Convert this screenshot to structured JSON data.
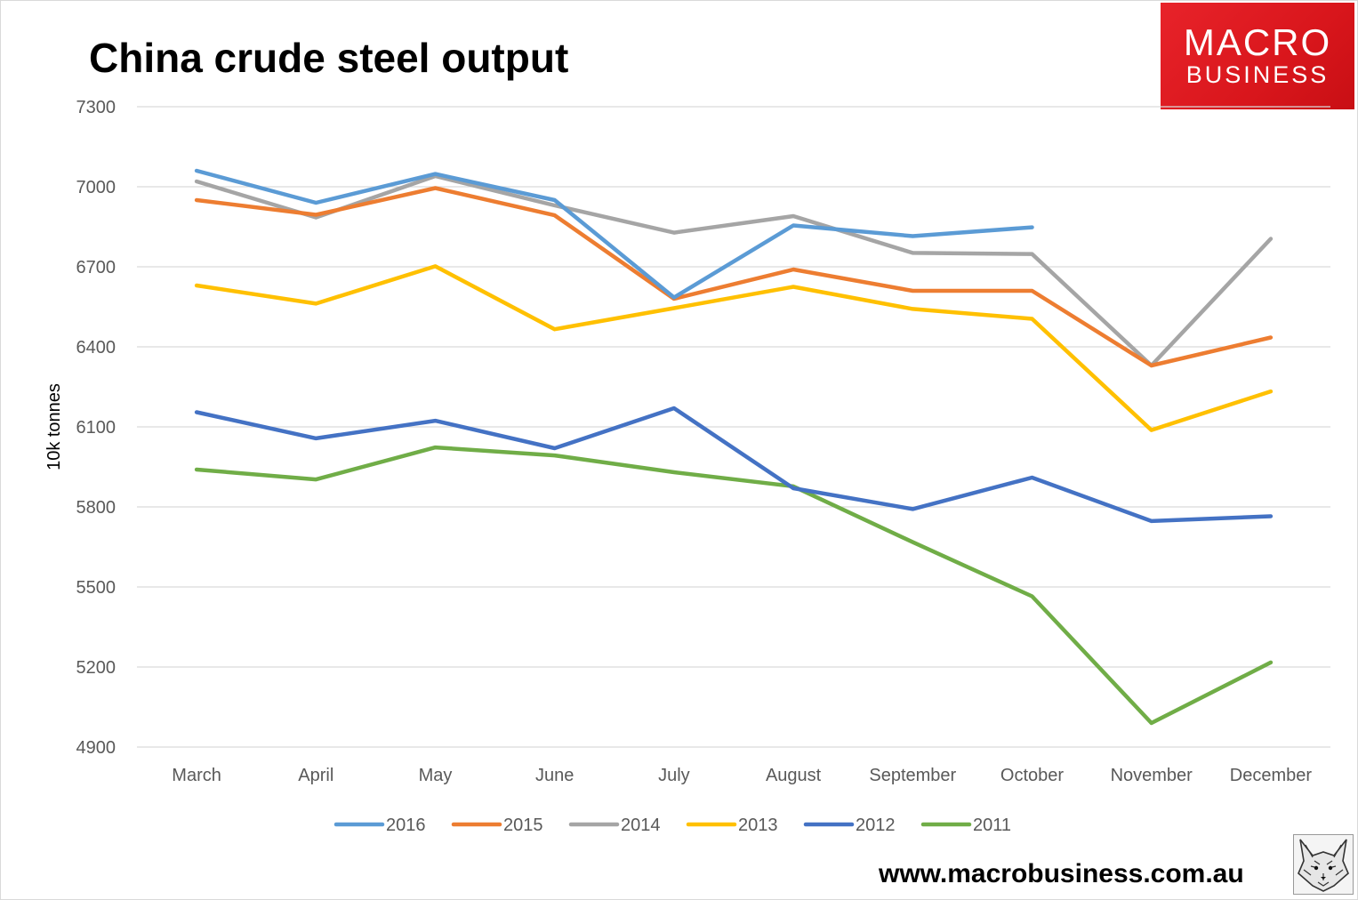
{
  "header": {
    "title": "China crude steel output"
  },
  "logo": {
    "line1": "MACRO",
    "line2": "BUSINESS",
    "color": "#e31e24"
  },
  "footer": {
    "website": "www.macrobusiness.com.au",
    "mascot": "fox-sketch-icon"
  },
  "chart_data": {
    "type": "line",
    "title": "China crude steel output",
    "xlabel": "",
    "ylabel": "10k tonnes",
    "ylim": [
      4900,
      7300
    ],
    "yticks": [
      4900,
      5200,
      5500,
      5800,
      6100,
      6400,
      6700,
      7000,
      7300
    ],
    "ytick_labels": [
      "4900",
      "5200",
      "5500",
      "5800",
      "6100",
      "6400",
      "6700",
      "7000",
      "7300"
    ],
    "grid": true,
    "legend_position": "bottom",
    "categories": [
      "March",
      "April",
      "May",
      "June",
      "July",
      "August",
      "September",
      "October",
      "November",
      "December"
    ],
    "series": [
      {
        "name": "2016",
        "color": "#5b9bd5",
        "values": [
          7060,
          6940,
          7048,
          6950,
          6585,
          6855,
          6815,
          6848,
          null,
          null
        ]
      },
      {
        "name": "2015",
        "color": "#ed7d31",
        "values": [
          6950,
          6895,
          6995,
          6893,
          6580,
          6690,
          6610,
          6610,
          6330,
          6435
        ]
      },
      {
        "name": "2014",
        "color": "#a5a5a5",
        "values": [
          7020,
          6885,
          7040,
          6930,
          6828,
          6890,
          6752,
          6748,
          6330,
          6805
        ]
      },
      {
        "name": "2013",
        "color": "#ffc000",
        "values": [
          6630,
          6562,
          6702,
          6466,
          6545,
          6625,
          6542,
          6505,
          6088,
          6233
        ]
      },
      {
        "name": "2012",
        "color": "#4472c4",
        "values": [
          6155,
          6057,
          6123,
          6020,
          6170,
          5870,
          5792,
          5910,
          5747,
          5765
        ]
      },
      {
        "name": "2011",
        "color": "#70ad47",
        "values": [
          5940,
          5903,
          6023,
          5993,
          5930,
          5877,
          5668,
          5465,
          4990,
          5217
        ]
      }
    ]
  }
}
